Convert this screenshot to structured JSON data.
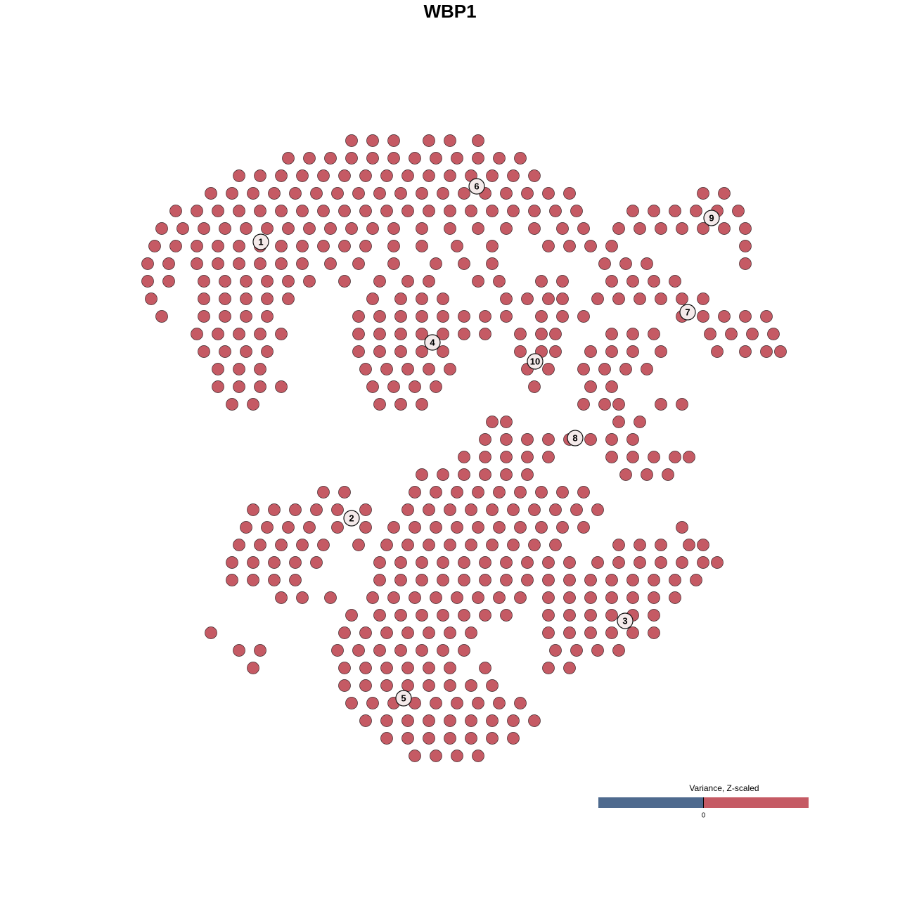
{
  "chart_data": {
    "type": "scatter",
    "title": "WBP1",
    "xlim": [
      0,
      1280
    ],
    "ylim": [
      1280,
      0
    ],
    "series": [
      {
        "color": "#c55a64",
        "x": [
          500,
          530,
          560,
          610,
          640,
          680,
          410,
          440,
          470,
          500,
          530,
          560,
          590,
          620,
          650,
          680,
          710,
          740,
          340,
          370,
          400,
          430,
          460,
          490,
          520,
          550,
          580,
          610,
          640,
          670,
          700,
          730,
          760,
          300,
          330,
          360,
          390,
          420,
          450,
          480,
          510,
          540,
          570,
          600,
          630,
          660,
          690,
          720,
          750,
          780,
          810,
          1000,
          1030,
          250,
          280,
          310,
          340,
          370,
          400,
          430,
          460,
          490,
          520,
          550,
          580,
          610,
          640,
          670,
          700,
          730,
          760,
          790,
          820,
          900,
          930,
          960,
          990,
          1020,
          1050,
          230,
          260,
          290,
          320,
          350,
          380,
          410,
          440,
          470,
          500,
          530,
          560,
          600,
          640,
          680,
          720,
          760,
          800,
          830,
          880,
          910,
          940,
          970,
          1000,
          1030,
          1060,
          220,
          250,
          280,
          310,
          340,
          370,
          400,
          430,
          460,
          490,
          520,
          560,
          600,
          650,
          700,
          780,
          810,
          840,
          870,
          1060,
          210,
          240,
          280,
          310,
          340,
          370,
          400,
          430,
          470,
          510,
          560,
          620,
          660,
          700,
          860,
          890,
          920,
          1060,
          210,
          240,
          290,
          320,
          350,
          380,
          410,
          440,
          490,
          540,
          580,
          610,
          680,
          710,
          770,
          800,
          870,
          900,
          930,
          960,
          215,
          290,
          320,
          350,
          380,
          410,
          530,
          570,
          600,
          630,
          720,
          750,
          780,
          800,
          850,
          880,
          910,
          940,
          970,
          1000,
          230,
          290,
          320,
          350,
          380,
          510,
          540,
          570,
          600,
          630,
          660,
          690,
          720,
          770,
          800,
          830,
          970,
          1000,
          1030,
          1060,
          1090,
          280,
          310,
          340,
          370,
          400,
          510,
          540,
          570,
          600,
          630,
          660,
          690,
          740,
          770,
          790,
          870,
          900,
          930,
          1010,
          1040,
          1070,
          1100,
          290,
          320,
          350,
          380,
          510,
          540,
          570,
          600,
          630,
          740,
          770,
          790,
          840,
          870,
          900,
          940,
          1020,
          1060,
          1090,
          1110,
          310,
          340,
          370,
          520,
          550,
          580,
          610,
          640,
          750,
          780,
          830,
          860,
          890,
          920,
          310,
          340,
          370,
          400,
          530,
          560,
          590,
          620,
          760,
          840,
          870,
          330,
          360,
          540,
          570,
          600,
          830,
          860,
          880,
          940,
          970,
          880,
          910,
          700,
          720,
          690,
          720,
          750,
          780,
          810,
          840,
          870,
          900,
          660,
          690,
          720,
          750,
          780,
          870,
          900,
          930,
          960,
          980,
          600,
          630,
          660,
          690,
          720,
          750,
          890,
          920,
          950,
          460,
          490,
          590,
          620,
          650,
          680,
          710,
          740,
          770,
          800,
          830,
          360,
          390,
          420,
          450,
          480,
          520,
          580,
          610,
          640,
          670,
          700,
          730,
          760,
          790,
          820,
          850,
          350,
          380,
          410,
          440,
          480,
          520,
          560,
          590,
          620,
          650,
          680,
          710,
          740,
          770,
          800,
          830,
          970,
          340,
          370,
          400,
          430,
          460,
          510,
          550,
          580,
          610,
          640,
          670,
          700,
          730,
          760,
          790,
          880,
          910,
          940,
          980,
          1000,
          330,
          360,
          390,
          420,
          450,
          540,
          570,
          600,
          630,
          660,
          690,
          720,
          750,
          780,
          810,
          850,
          880,
          910,
          940,
          970,
          1000,
          1020,
          330,
          360,
          390,
          420,
          540,
          570,
          600,
          630,
          660,
          690,
          720,
          750,
          780,
          810,
          840,
          870,
          900,
          930,
          960,
          990,
          400,
          430,
          470,
          530,
          560,
          590,
          620,
          650,
          680,
          710,
          740,
          780,
          810,
          840,
          870,
          900,
          930,
          960,
          500,
          540,
          570,
          600,
          630,
          660,
          690,
          720,
          780,
          810,
          840,
          870,
          900,
          930,
          300,
          490,
          520,
          550,
          580,
          610,
          640,
          670,
          780,
          810,
          840,
          870,
          900,
          930,
          340,
          370,
          480,
          510,
          540,
          570,
          600,
          630,
          660,
          790,
          820,
          850,
          880,
          360,
          490,
          520,
          550,
          580,
          610,
          640,
          690,
          780,
          810,
          490,
          520,
          550,
          580,
          610,
          640,
          670,
          700,
          500,
          530,
          560,
          590,
          620,
          650,
          680,
          710,
          740,
          520,
          550,
          580,
          610,
          640,
          670,
          700,
          730,
          760,
          550,
          580,
          610,
          640,
          670,
          700,
          730,
          590,
          620,
          650,
          680
        ],
        "values": [
          200,
          200,
          200,
          200,
          200,
          200,
          225,
          225,
          225,
          225,
          225,
          225,
          225,
          225,
          225,
          225,
          225,
          225,
          250,
          250,
          250,
          250,
          250,
          250,
          250,
          250,
          250,
          250,
          250,
          250,
          250,
          250,
          250,
          275,
          275,
          275,
          275,
          275,
          275,
          275,
          275,
          275,
          275,
          275,
          275,
          275,
          275,
          275,
          275,
          275,
          275,
          275,
          275,
          300,
          300,
          300,
          300,
          300,
          300,
          300,
          300,
          300,
          300,
          300,
          300,
          300,
          300,
          300,
          300,
          300,
          300,
          300,
          300,
          300,
          300,
          300,
          300,
          300,
          300,
          325,
          325,
          325,
          325,
          325,
          325,
          325,
          325,
          325,
          325,
          325,
          325,
          325,
          325,
          325,
          325,
          325,
          325,
          325,
          325,
          325,
          325,
          325,
          325,
          325,
          325,
          350,
          350,
          350,
          350,
          350,
          350,
          350,
          350,
          350,
          350,
          350,
          350,
          350,
          350,
          350,
          350,
          350,
          350,
          350,
          350,
          375,
          375,
          375,
          375,
          375,
          375,
          375,
          375,
          375,
          375,
          375,
          375,
          375,
          375,
          375,
          375,
          375,
          375,
          400,
          400,
          400,
          400,
          400,
          400,
          400,
          400,
          400,
          400,
          400,
          400,
          400,
          400,
          400,
          400,
          400,
          400,
          400,
          400,
          425,
          425,
          425,
          425,
          425,
          425,
          425,
          425,
          425,
          425,
          425,
          425,
          425,
          425,
          425,
          425,
          425,
          425,
          425,
          425,
          450,
          450,
          450,
          450,
          450,
          450,
          450,
          450,
          450,
          450,
          450,
          450,
          450,
          450,
          450,
          450,
          450,
          450,
          450,
          450,
          450,
          475,
          475,
          475,
          475,
          475,
          475,
          475,
          475,
          475,
          475,
          475,
          475,
          475,
          475,
          475,
          475,
          475,
          475,
          475,
          475,
          475,
          475,
          500,
          500,
          500,
          500,
          500,
          500,
          500,
          500,
          500,
          500,
          500,
          500,
          500,
          500,
          500,
          500,
          500,
          500,
          500,
          500,
          525,
          525,
          525,
          525,
          525,
          525,
          525,
          525,
          525,
          525,
          525,
          525,
          525,
          525,
          550,
          550,
          550,
          550,
          550,
          550,
          550,
          550,
          550,
          550,
          550,
          575,
          575,
          575,
          575,
          575,
          575,
          575,
          575,
          575,
          575,
          600,
          600,
          600,
          600,
          625,
          625,
          625,
          625,
          625,
          625,
          625,
          625,
          650,
          650,
          650,
          650,
          650,
          650,
          650,
          650,
          650,
          650,
          675,
          675,
          675,
          675,
          675,
          675,
          675,
          675,
          675,
          700,
          700,
          700,
          700,
          700,
          700,
          700,
          700,
          700,
          700,
          700,
          725,
          725,
          725,
          725,
          725,
          725,
          725,
          725,
          725,
          725,
          725,
          725,
          725,
          725,
          725,
          725,
          750,
          750,
          750,
          750,
          750,
          750,
          750,
          750,
          750,
          750,
          750,
          750,
          750,
          750,
          750,
          750,
          750,
          775,
          775,
          775,
          775,
          775,
          775,
          775,
          775,
          775,
          775,
          775,
          775,
          775,
          775,
          775,
          775,
          775,
          775,
          775,
          775,
          800,
          800,
          800,
          800,
          800,
          800,
          800,
          800,
          800,
          800,
          800,
          800,
          800,
          800,
          800,
          800,
          800,
          800,
          800,
          800,
          800,
          800,
          825,
          825,
          825,
          825,
          825,
          825,
          825,
          825,
          825,
          825,
          825,
          825,
          825,
          825,
          825,
          825,
          825,
          825,
          825,
          825,
          850,
          850,
          850,
          850,
          850,
          850,
          850,
          850,
          850,
          850,
          850,
          850,
          850,
          850,
          850,
          850,
          850,
          850,
          875,
          875,
          875,
          875,
          875,
          875,
          875,
          875,
          875,
          875,
          875,
          875,
          875,
          875,
          900,
          900,
          900,
          900,
          900,
          900,
          900,
          900,
          900,
          900,
          900,
          900,
          900,
          900,
          925,
          925,
          925,
          925,
          925,
          925,
          925,
          925,
          925,
          925,
          925,
          925,
          925,
          950,
          950,
          950,
          950,
          950,
          950,
          950,
          950,
          950,
          950,
          975,
          975,
          975,
          975,
          975,
          975,
          975,
          975,
          1000,
          1000,
          1000,
          1000,
          1000,
          1000,
          1000,
          1000,
          1000,
          1025,
          1025,
          1025,
          1025,
          1025,
          1025,
          1025,
          1025,
          1025,
          1050,
          1050,
          1050,
          1050,
          1050,
          1050,
          1050,
          1075,
          1075,
          1075,
          1075
        ]
      }
    ],
    "annotations": [
      {
        "text": "1",
        "x": 371,
        "y": 344
      },
      {
        "text": "2",
        "x": 500,
        "y": 737
      },
      {
        "text": "3",
        "x": 889,
        "y": 883
      },
      {
        "text": "4",
        "x": 615,
        "y": 487
      },
      {
        "text": "5",
        "x": 574,
        "y": 993
      },
      {
        "text": "6",
        "x": 678,
        "y": 265
      },
      {
        "text": "7",
        "x": 978,
        "y": 444
      },
      {
        "text": "8",
        "x": 818,
        "y": 623
      },
      {
        "text": "9",
        "x": 1012,
        "y": 310
      },
      {
        "text": "10",
        "x": 761,
        "y": 514
      }
    ],
    "colorbar": {
      "title": "Variance, Z-scaled",
      "lim": [
        -1,
        1
      ],
      "ticks": [
        0
      ],
      "colors": [
        "#4e6a8e",
        "#c55a64"
      ]
    }
  }
}
